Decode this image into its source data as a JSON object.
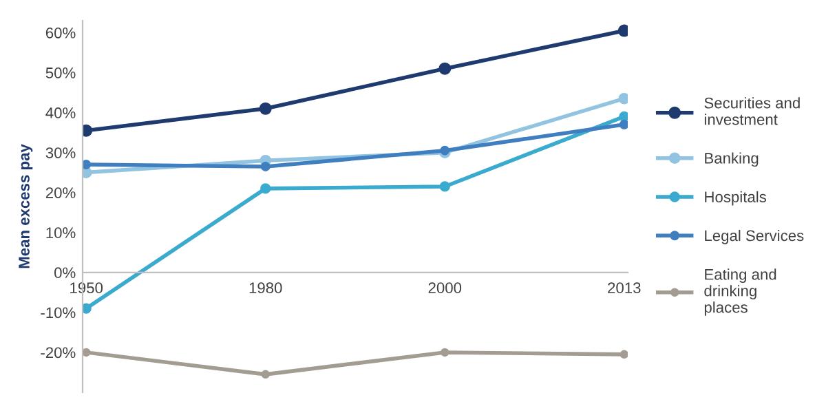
{
  "chart_data": {
    "type": "line",
    "ylabel": "Mean excess pay",
    "categories": [
      "1950",
      "1980",
      "2000",
      "2013"
    ],
    "series": [
      {
        "name": "Securities and investment",
        "color": "#1f3a6e",
        "values": [
          35.5,
          41,
          51,
          60.5
        ]
      },
      {
        "name": "Banking",
        "color": "#92c3e0",
        "values": [
          25,
          28,
          30,
          43.5
        ]
      },
      {
        "name": "Hospitals",
        "color": "#3aaacf",
        "values": [
          -9,
          21,
          21.5,
          39
        ]
      },
      {
        "name": "Legal Services",
        "color": "#3f7fc0",
        "values": [
          27,
          26.5,
          30.5,
          37
        ]
      },
      {
        "name": "Eating and drinking places",
        "color": "#a39c92",
        "values": [
          -20,
          -25.5,
          -20,
          -20.5
        ]
      }
    ],
    "ylim": [
      -30,
      63
    ],
    "yticks": [
      {
        "value": -20,
        "label": "-20%"
      },
      {
        "value": -10,
        "label": "-10%"
      },
      {
        "value": 0,
        "label": "0%"
      },
      {
        "value": 10,
        "label": "10%"
      },
      {
        "value": 20,
        "label": "20%"
      },
      {
        "value": 30,
        "label": "30%"
      },
      {
        "value": 40,
        "label": "40%"
      },
      {
        "value": 50,
        "label": "50%"
      },
      {
        "value": 60,
        "label": "60%"
      }
    ],
    "grid": false,
    "legend": "right",
    "marker": "circle",
    "line_style": "solid"
  }
}
